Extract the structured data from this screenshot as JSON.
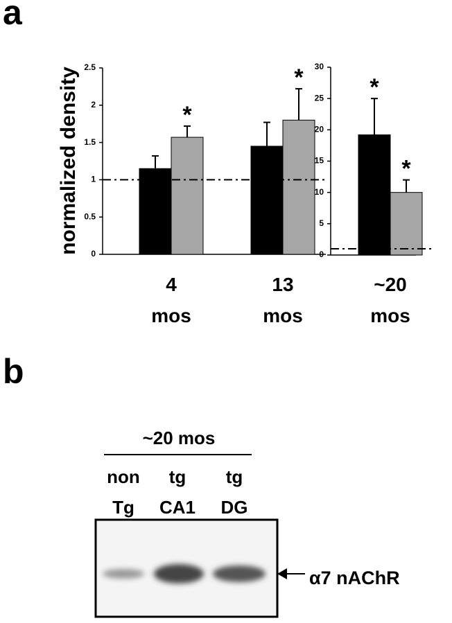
{
  "panel_labels": [
    "a",
    "b"
  ],
  "chart_data": [
    {
      "type": "bar",
      "ylabel": "normalized density",
      "categories": [
        "4 mos",
        "13 mos"
      ],
      "series": [
        {
          "color": "#000000",
          "values": [
            1.15,
            1.45
          ],
          "errors": [
            0.17,
            0.32
          ]
        },
        {
          "color": "#a6a6a6",
          "values": [
            1.57,
            1.8
          ],
          "errors": [
            0.15,
            0.42
          ]
        }
      ],
      "ylim": [
        0,
        2.5
      ],
      "yticks": [
        0,
        0.5,
        1,
        1.5,
        2,
        2.5
      ],
      "reference_line": 1,
      "annotations": [
        {
          "text": "*",
          "series": 1,
          "index": 0
        },
        {
          "text": "*",
          "series": 1,
          "index": 1
        }
      ]
    },
    {
      "type": "bar",
      "categories": [
        "~20 mos"
      ],
      "series": [
        {
          "color": "#000000",
          "values": [
            19.2
          ],
          "errors": [
            5.8
          ]
        },
        {
          "color": "#a6a6a6",
          "values": [
            10
          ],
          "errors": [
            2
          ]
        }
      ],
      "ylim": [
        0,
        30
      ],
      "yticks": [
        0,
        5,
        10,
        15,
        20,
        25,
        30
      ],
      "reference_line": 1,
      "annotations": [
        {
          "text": "*",
          "series": 0,
          "index": 0
        },
        {
          "text": "*",
          "series": 1,
          "index": 0
        }
      ]
    }
  ],
  "blot": {
    "header": "~20 mos",
    "lanes": [
      {
        "top": "non",
        "bottom": "Tg"
      },
      {
        "top": "tg",
        "bottom": "CA1"
      },
      {
        "top": "tg",
        "bottom": "DG"
      }
    ],
    "band_label": "α7 nAChR"
  }
}
